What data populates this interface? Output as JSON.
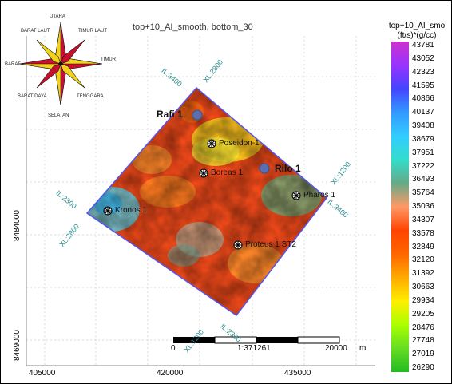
{
  "title": "top+10_AI_smooth, bottom_30",
  "colorbar": {
    "title_line1": "top+10_AI_smo",
    "title_line2": "(ft/s)*(g/cc)",
    "ticks": [
      "43781",
      "43052",
      "42323",
      "41595",
      "40866",
      "40137",
      "39408",
      "38679",
      "37951",
      "37222",
      "36493",
      "35764",
      "35036",
      "34307",
      "33578",
      "32849",
      "32120",
      "31392",
      "30663",
      "29934",
      "29205",
      "28476",
      "27748",
      "27019",
      "26290"
    ],
    "colors": [
      "#cc33cc",
      "#9933ff",
      "#4444ff",
      "#3399ff",
      "#33ccff",
      "#33ddcc",
      "#66aa88",
      "#ff9966",
      "#ff4400",
      "#ff6600",
      "#ffaa00",
      "#ffee00",
      "#aaff00",
      "#66dd22",
      "#22bb22"
    ]
  },
  "axes": {
    "x_ticks": [
      "405000",
      "420000",
      "435000"
    ],
    "y_ticks": [
      "8484000",
      "8469000"
    ]
  },
  "compass": {
    "north": "UTARA",
    "northeast": "TIMUR LAUT",
    "east": "TIMUR",
    "southeast": "TENGGARA",
    "south": "SELATAN",
    "southwest": "BARAT DAYA",
    "west": "BARAT",
    "northwest": "BARAT LAUT"
  },
  "wells": {
    "rafi": "Rafi 1",
    "rilo": "Rilo 1",
    "poseidon": "Poseidon-1",
    "boreas": "Boreas 1",
    "pharos": "Pharos 1",
    "kronos": "Kronos 1",
    "proteus": "Proteus 1 ST2"
  },
  "lines": {
    "il3400": "IL:3400",
    "xl2800_top": "XL:2800",
    "xl1200": "XL:1200",
    "il3400_r": "IL:3400",
    "il2300": "IL:2300",
    "xl2800_left": "XL:2800",
    "xl1200_b": "XL:1200",
    "il2300_b": "IL:2300"
  },
  "scalebar": {
    "start": "0",
    "ratio": "1:371261",
    "end": "20000",
    "unit": "m"
  }
}
